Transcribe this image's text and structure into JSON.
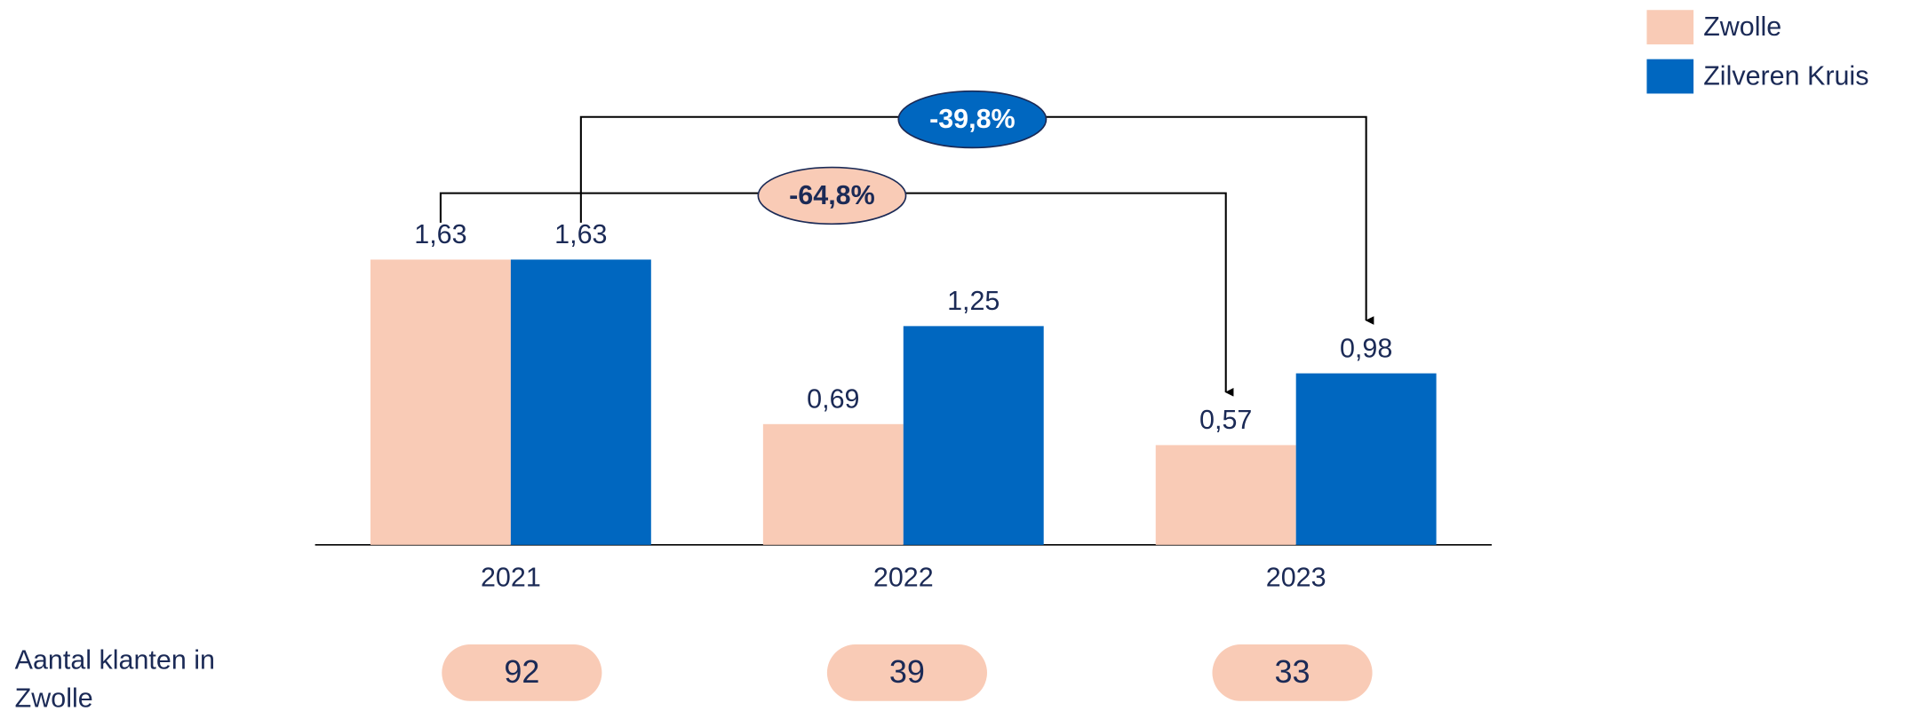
{
  "chart_data": {
    "type": "bar",
    "categories": [
      "2021",
      "2022",
      "2023"
    ],
    "series": [
      {
        "name": "Zwolle",
        "color": "#f9cbb6",
        "values": [
          1.63,
          0.69,
          0.57
        ],
        "value_labels": [
          "1,63",
          "0,69",
          "0,57"
        ]
      },
      {
        "name": "Zilveren Kruis",
        "color": "#0067c0",
        "values": [
          1.63,
          1.25,
          0.98
        ],
        "value_labels": [
          "1,63",
          "1,25",
          "0,98"
        ]
      }
    ],
    "annotations": [
      {
        "text": "-64,8%",
        "series": 0
      },
      {
        "text": "-39,8%",
        "series": 1
      }
    ],
    "customers": {
      "label": "Aantal klanten in Zwolle",
      "values": [
        92,
        39,
        33
      ]
    }
  }
}
